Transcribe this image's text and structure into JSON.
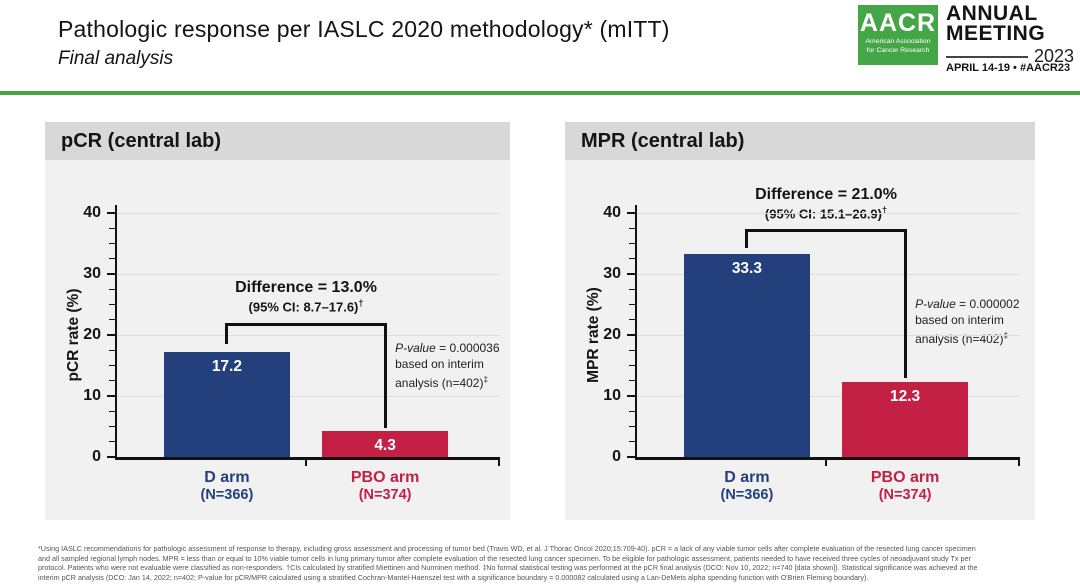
{
  "slide": {
    "title": "Pathologic response per IASLC 2020 methodology* (mITT)",
    "subtitle": "Final analysis"
  },
  "logo": {
    "acronym": "AACR",
    "org_line1": "American Association",
    "org_line2": "for Cancer Research",
    "meeting_line1": "ANNUAL",
    "meeting_line2": "MEETING",
    "year": "2023",
    "date_line": "APRIL 14-19 • #AACR23"
  },
  "colors": {
    "green": "#45a648",
    "navy": "#24407c",
    "crimson": "#c41f45",
    "panel_header_bg": "#d8d8d8",
    "panel_body_bg": "#f1f1f1"
  },
  "chart_data": [
    {
      "type": "bar",
      "title": "pCR (central lab)",
      "ylabel": "pCR rate (%)",
      "xlabel": "",
      "ylim": [
        0,
        40
      ],
      "yticks": [
        0,
        10,
        20,
        30,
        40
      ],
      "minor_tick_step": 2.5,
      "grid": true,
      "legend_position": "none",
      "categories": [
        "D arm (N=366)",
        "PBO arm (N=374)"
      ],
      "values": [
        17.2,
        4.3
      ],
      "arms": [
        {
          "label": "D arm",
          "n": "(N=366)",
          "value": 17.2,
          "value_label": "17.2",
          "color": "#24407c"
        },
        {
          "label": "PBO arm",
          "n": "(N=374)",
          "value": 4.3,
          "value_label": "4.3",
          "color": "#c41f45"
        }
      ],
      "difference_label": "Difference = 13.0%",
      "ci_label": "(95% CI: 8.7–17.6)",
      "ci_sup": "†",
      "pvalue_italic": "P-value",
      "pvalue_text": " = 0.000036 based on interim analysis (n=402)",
      "pvalue_sup": "‡"
    },
    {
      "type": "bar",
      "title": "MPR (central lab)",
      "ylabel": "MPR rate (%)",
      "xlabel": "",
      "ylim": [
        0,
        40
      ],
      "yticks": [
        0,
        10,
        20,
        30,
        40
      ],
      "minor_tick_step": 2.5,
      "grid": true,
      "legend_position": "none",
      "categories": [
        "D arm (N=366)",
        "PBO arm (N=374)"
      ],
      "values": [
        33.3,
        12.3
      ],
      "arms": [
        {
          "label": "D arm",
          "n": "(N=366)",
          "value": 33.3,
          "value_label": "33.3",
          "color": "#24407c"
        },
        {
          "label": "PBO arm",
          "n": "(N=374)",
          "value": 12.3,
          "value_label": "12.3",
          "color": "#c41f45"
        }
      ],
      "difference_label": "Difference = 21.0%",
      "ci_label": "(95% CI: 15.1–26.9)",
      "ci_sup": "†",
      "pvalue_italic": "P-value",
      "pvalue_text": " = 0.000002 based on interim analysis (n=402)",
      "pvalue_sup": "‡"
    }
  ],
  "footnote": {
    "lines": [
      "*Using IASLC recommendations for pathologic assessment of response to therapy, including gross assessment and processing of tumor bed (Travis WD, et al. J Thorac Oncol 2020;15:709-40). pCR = a lack of any viable tumor cells after complete evaluation of the resected lung cancer specimen",
      "and all sampled regional lymph nodes. MPR = less than or equal to 10% viable tumor cells in lung primary tumor after complete evaluation of the resected lung cancer specimen. To be eligible for pathologic assessment, patients needed to have received three cycles of neoadjuvant study Tx per",
      "protocol. Patients who were not evaluable were classified as non-responders. †CIs calculated by stratified Miettinen and Nurminen method. ‡No formal statistical testing was performed at the pCR final analysis (DCO: Nov 10, 2022; n=740 [data shown]). Statistical significance was achieved at the",
      "interim pCR analysis (DCO: Jan 14, 2022; n=402; P-value for pCR/MPR calculated using a stratified Cochran-Mantel-Haenszel test with a significance boundary = 0.000082 calculated using a Lan-DeMets alpha spending function with O'Brien Fleming boundary)."
    ]
  }
}
